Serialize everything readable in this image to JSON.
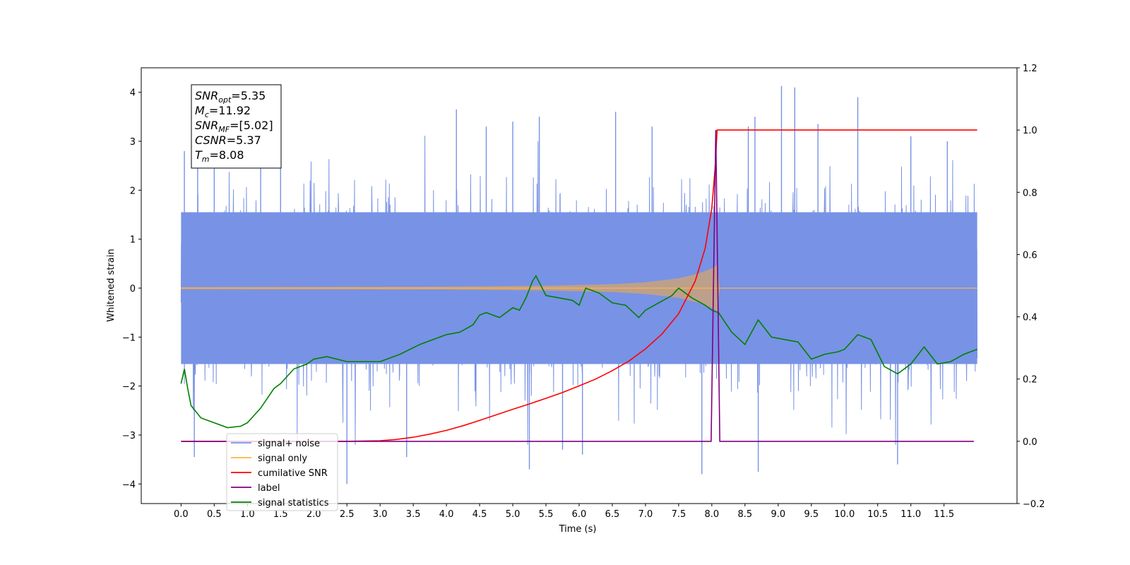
{
  "chart_data": {
    "type": "line",
    "xlabel": "Time (s)",
    "ylabel": "Whitened strain",
    "xlim": [
      -0.6,
      12.6
    ],
    "ylim": [
      -4.4,
      4.5
    ],
    "y2lim": [
      -0.2,
      1.2
    ],
    "x_ticks": [
      "0.0",
      "0.5",
      "1.0",
      "1.5",
      "2.0",
      "2.5",
      "3.0",
      "3.5",
      "4.0",
      "4.5",
      "5.0",
      "5.5",
      "6.0",
      "6.5",
      "7.0",
      "7.5",
      "8.0",
      "8.5",
      "9.0",
      "9.5",
      "10.0",
      "10.5",
      "11.0",
      "11.5"
    ],
    "y_ticks": [
      "−4",
      "−3",
      "−2",
      "−1",
      "0",
      "1",
      "2",
      "3",
      "4"
    ],
    "y2_ticks": [
      "−0.2",
      "0.0",
      "0.2",
      "0.4",
      "0.6",
      "0.8",
      "1.0",
      "1.2"
    ],
    "grid": false,
    "legend_position": "bottom-left",
    "stats_box": [
      {
        "name": "SNR",
        "sub": "opt",
        "value": "=5.35"
      },
      {
        "name": "M",
        "sub": "c",
        "value": "=11.92"
      },
      {
        "name": "SNR",
        "sub": "MF",
        "value": "=[5.02]"
      },
      {
        "name": "CSNR",
        "sub": "",
        "value": "=5.37"
      },
      {
        "name": "T",
        "sub": "m",
        "value": "=8.08"
      }
    ],
    "series": [
      {
        "name": "signal+ noise",
        "axis": "left",
        "color": "#7892e6",
        "description_values": {
          "x_start": 0.0,
          "x_end": 12.0,
          "typical_min": -2.3,
          "typical_max": 2.3,
          "max": 4.13,
          "min": -4.0
        },
        "peaks": [
          [
            0.05,
            2.8
          ],
          [
            0.2,
            -3.45
          ],
          [
            0.25,
            3.3
          ],
          [
            0.5,
            2.9
          ],
          [
            1.2,
            3.0
          ],
          [
            1.5,
            3.05
          ],
          [
            2.5,
            -4.0
          ],
          [
            3.4,
            -3.45
          ],
          [
            4.15,
            3.65
          ],
          [
            4.6,
            3.3
          ],
          [
            5.0,
            3.4
          ],
          [
            5.4,
            3.5
          ],
          [
            5.25,
            -3.7
          ],
          [
            5.75,
            -3.3
          ],
          [
            6.55,
            3.6
          ],
          [
            6.05,
            -3.4
          ],
          [
            7.1,
            3.3
          ],
          [
            7.85,
            -3.8
          ],
          [
            8.55,
            3.3
          ],
          [
            8.65,
            3.5
          ],
          [
            8.7,
            -3.75
          ],
          [
            9.05,
            4.13
          ],
          [
            9.25,
            4.1
          ],
          [
            9.6,
            3.35
          ],
          [
            10.2,
            3.9
          ],
          [
            10.8,
            -3.6
          ],
          [
            11.0,
            3.1
          ],
          [
            11.55,
            3.0
          ]
        ]
      },
      {
        "name": "signal only",
        "axis": "left",
        "color": "#ffb347",
        "description_values": {
          "x_start": 0.0,
          "x_end": 12.0,
          "chirp_peak_time": 8.08,
          "envelope": [
            [
              0.0,
              0.02
            ],
            [
              4.0,
              0.03
            ],
            [
              5.5,
              0.05
            ],
            [
              6.5,
              0.08
            ],
            [
              7.0,
              0.12
            ],
            [
              7.5,
              0.2
            ],
            [
              7.8,
              0.3
            ],
            [
              8.0,
              0.4
            ],
            [
              8.08,
              0.48
            ],
            [
              8.12,
              0.0
            ]
          ]
        }
      },
      {
        "name": "cumilative SNR",
        "axis": "right",
        "color": "#ff0000",
        "x": [
          0.0,
          2.5,
          3.0,
          3.25,
          3.5,
          3.75,
          4.0,
          4.25,
          4.5,
          4.75,
          5.0,
          5.25,
          5.5,
          5.75,
          6.0,
          6.25,
          6.5,
          6.75,
          7.0,
          7.25,
          7.5,
          7.75,
          7.9,
          8.0,
          8.05,
          8.08,
          12.0
        ],
        "y": [
          0.0,
          0.0,
          0.002,
          0.006,
          0.013,
          0.023,
          0.035,
          0.05,
          0.067,
          0.085,
          0.103,
          0.12,
          0.138,
          0.157,
          0.178,
          0.2,
          0.227,
          0.258,
          0.297,
          0.345,
          0.41,
          0.515,
          0.62,
          0.75,
          0.88,
          1.0,
          1.0
        ]
      },
      {
        "name": "label",
        "axis": "right",
        "color": "#800080",
        "x": [
          0.0,
          7.99,
          8.06,
          8.12,
          8.13,
          11.95
        ],
        "y": [
          0.0,
          0.0,
          1.0,
          0.0,
          0.0,
          0.0
        ]
      },
      {
        "name": "signal statistics",
        "axis": "left",
        "color": "#008000",
        "x": [
          0.0,
          0.05,
          0.1,
          0.15,
          0.3,
          0.5,
          0.7,
          0.9,
          1.0,
          1.2,
          1.4,
          1.5,
          1.7,
          1.9,
          2.0,
          2.2,
          2.5,
          2.7,
          3.0,
          3.3,
          3.6,
          3.8,
          4.0,
          4.2,
          4.4,
          4.5,
          4.6,
          4.8,
          5.0,
          5.1,
          5.2,
          5.3,
          5.35,
          5.5,
          5.7,
          5.9,
          6.0,
          6.1,
          6.3,
          6.5,
          6.7,
          6.9,
          7.0,
          7.2,
          7.4,
          7.5,
          7.7,
          7.9,
          8.0,
          8.1,
          8.3,
          8.5,
          8.7,
          8.9,
          9.1,
          9.3,
          9.5,
          9.7,
          9.9,
          10.0,
          10.2,
          10.4,
          10.6,
          10.8,
          11.0,
          11.2,
          11.4,
          11.6,
          11.8,
          12.0
        ],
        "y": [
          -1.95,
          -1.65,
          -2.05,
          -2.4,
          -2.65,
          -2.75,
          -2.85,
          -2.82,
          -2.75,
          -2.45,
          -2.05,
          -1.95,
          -1.65,
          -1.55,
          -1.45,
          -1.4,
          -1.5,
          -1.5,
          -1.5,
          -1.35,
          -1.15,
          -1.05,
          -0.95,
          -0.9,
          -0.75,
          -0.55,
          -0.5,
          -0.6,
          -0.4,
          -0.45,
          -0.2,
          0.15,
          0.25,
          -0.15,
          -0.2,
          -0.25,
          -0.35,
          0.0,
          -0.1,
          -0.3,
          -0.35,
          -0.6,
          -0.45,
          -0.3,
          -0.15,
          0.0,
          -0.2,
          -0.35,
          -0.45,
          -0.5,
          -0.9,
          -1.15,
          -0.65,
          -1.0,
          -1.05,
          -1.1,
          -1.45,
          -1.35,
          -1.3,
          -1.25,
          -0.95,
          -1.05,
          -1.6,
          -1.75,
          -1.55,
          -1.2,
          -1.55,
          -1.5,
          -1.35,
          -1.25
        ]
      }
    ]
  }
}
